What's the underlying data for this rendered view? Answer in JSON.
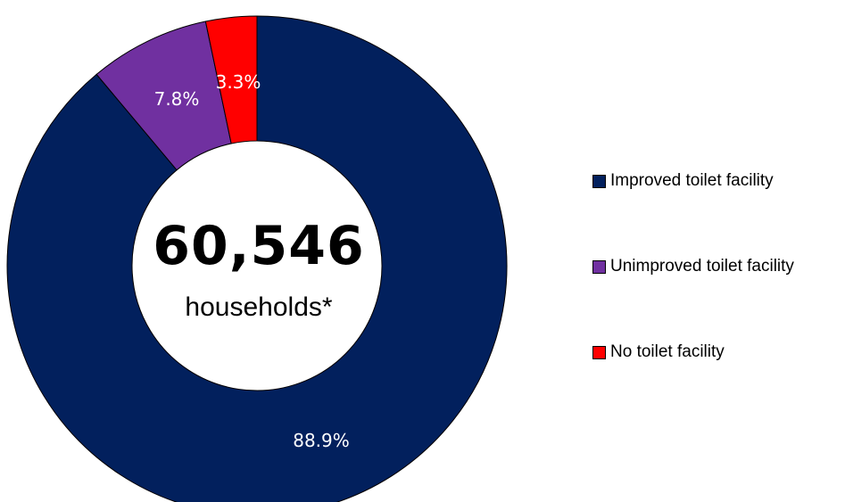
{
  "chart_data": {
    "type": "pie",
    "style": "donut",
    "categories": [
      "Improved toilet facility",
      "Unimproved toilet facility",
      "No toilet facility"
    ],
    "values": [
      88.9,
      7.8,
      3.3
    ],
    "value_labels": [
      "88.9%",
      "7.8%",
      "3.3%"
    ],
    "colors": [
      "#02205d",
      "#7030a0",
      "#ff0000"
    ],
    "center_total": "60,546",
    "center_caption": "households*",
    "legend_position": "right",
    "title": ""
  }
}
